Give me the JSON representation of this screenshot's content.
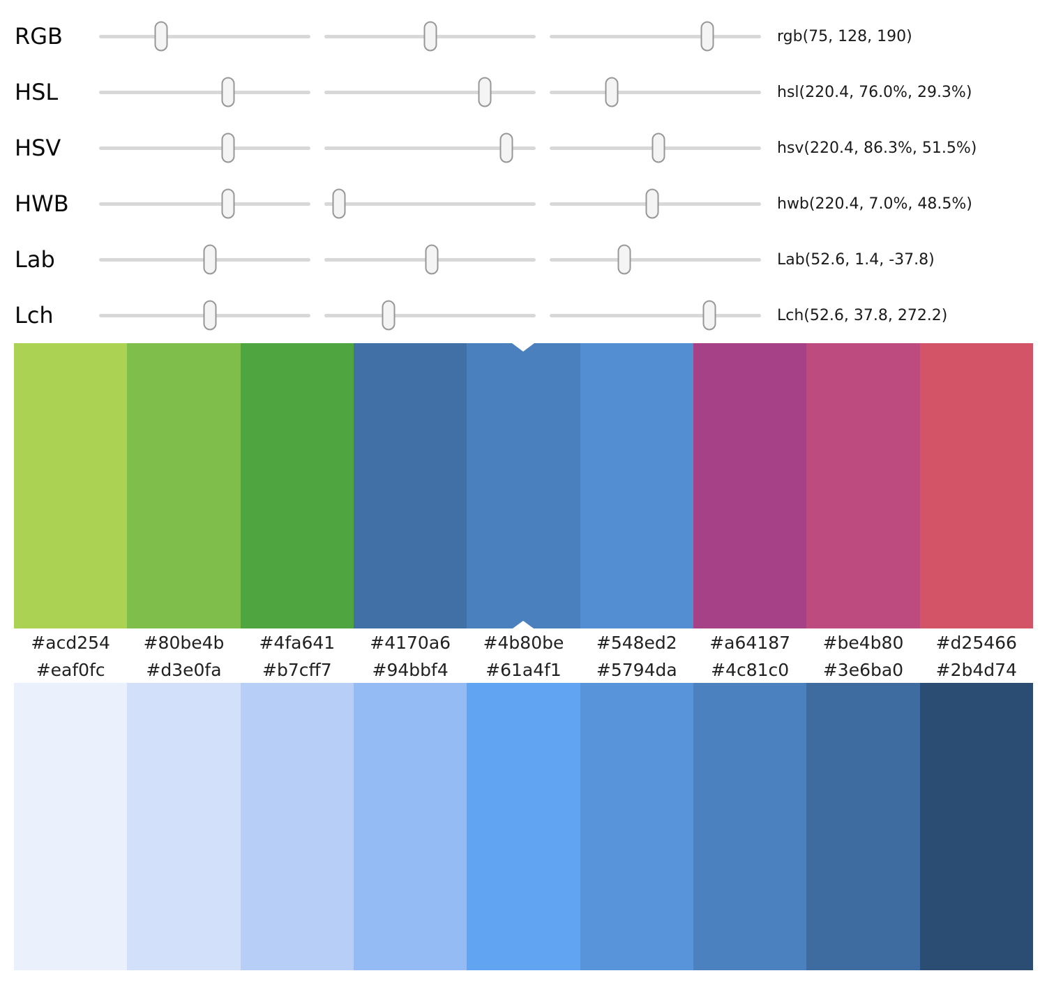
{
  "sliders": {
    "rows": [
      {
        "label": "RGB",
        "value": "rgb(75, 128, 190)",
        "handles": [
          29.4,
          50.2,
          74.5
        ]
      },
      {
        "label": "HSL",
        "value": "hsl(220.4, 76.0%, 29.3%)",
        "handles": [
          61.2,
          76.0,
          29.3
        ]
      },
      {
        "label": "HSV",
        "value": "hsv(220.4, 86.3%, 51.5%)",
        "handles": [
          61.2,
          86.3,
          51.5
        ]
      },
      {
        "label": "HWB",
        "value": "hwb(220.4, 7.0%, 48.5%)",
        "handles": [
          61.2,
          7.0,
          48.5
        ]
      },
      {
        "label": "Lab",
        "value": "Lab(52.6, 1.4, -37.8)",
        "handles": [
          52.6,
          50.7,
          35.4
        ]
      },
      {
        "label": "Lch",
        "value": "Lch(52.6, 37.8, 272.2)",
        "handles": [
          52.6,
          30.2,
          75.6
        ]
      }
    ]
  },
  "top_palette": {
    "selected_index": 4,
    "selected_hex": "#4b80be",
    "swatches": [
      "#acd254",
      "#80be4b",
      "#4fa641",
      "#4170a6",
      "#4b80be",
      "#548ed2",
      "#a64187",
      "#be4b80",
      "#d25466"
    ]
  },
  "bottom_palette": {
    "swatches": [
      "#eaf0fc",
      "#d3e0fa",
      "#b7cff7",
      "#94bbf4",
      "#61a4f1",
      "#5794da",
      "#4c81c0",
      "#3e6ba0",
      "#2b4d74"
    ]
  },
  "colors": {
    "track": "#d8d8d8",
    "handle_fill": "#f4f4f4",
    "handle_border": "#979797",
    "notch": "#ffffff"
  }
}
